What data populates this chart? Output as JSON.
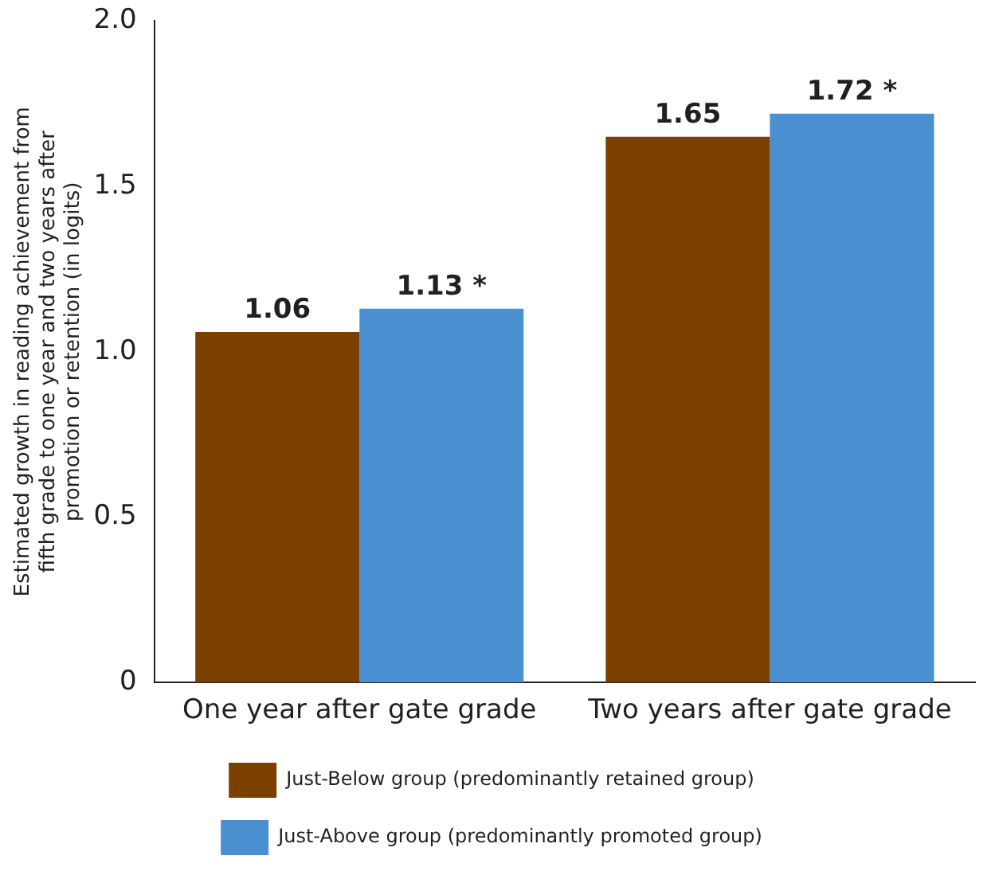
{
  "chart_data": {
    "type": "bar",
    "ylabel": "Estimated growth in reading achievement from fifth grade to one year and two years after promotion or retention (in logits)",
    "categories": [
      "One year after gate grade",
      "Two years after gate grade"
    ],
    "series": [
      {
        "name": "Just-Below group (predominantly retained group)",
        "color": "#7b3f00",
        "values": [
          1.06,
          1.65
        ],
        "value_labels": [
          "1.06",
          "1.65"
        ]
      },
      {
        "name": "Just-Above group (predominantly promoted group)",
        "color": "#4a8fd0",
        "values": [
          1.13,
          1.72
        ],
        "value_labels": [
          "1.13 *",
          "1.72 *"
        ]
      }
    ],
    "ylim": [
      0,
      2
    ],
    "yticks": [
      0,
      0.5,
      {
        "value": 1,
        "label": "1.0"
      },
      1.5,
      {
        "value": 2,
        "label": "2.0"
      }
    ],
    "grid": false,
    "legend": "bottom"
  }
}
